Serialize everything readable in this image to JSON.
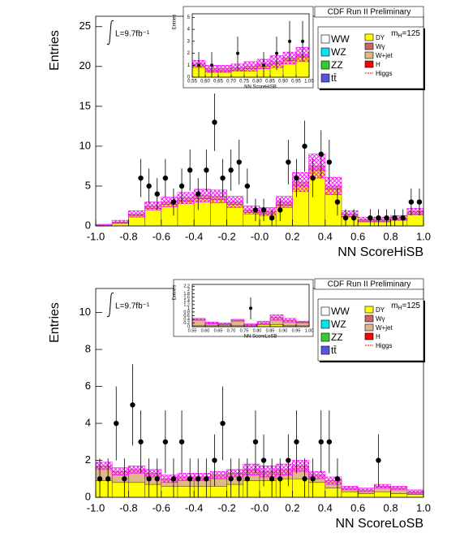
{
  "chart_data": [
    {
      "type": "histogram",
      "title": "CDF Run II Preliminary",
      "lumi": "L=9.7fb⁻¹",
      "mass": {
        "m": "m",
        "sub": "H",
        "rest": "=125"
      },
      "xlabel": "NN ScoreHiSB",
      "ylabel": "Entries",
      "bins": [
        -1.0,
        -0.9,
        -0.8,
        -0.7,
        -0.6,
        -0.5,
        -0.4,
        -0.3,
        -0.2,
        -0.1,
        0.0,
        0.1,
        0.2,
        0.3,
        0.4,
        0.5,
        0.6,
        0.7,
        0.8,
        0.9,
        1.0
      ],
      "series": [
        {
          "name": "DY",
          "color": "#ffff00",
          "values": [
            0.1,
            0.4,
            1.3,
            2.2,
            2.7,
            3.1,
            3.4,
            3.3,
            2.7,
            1.7,
            1.5,
            2.6,
            5.0,
            7.0,
            4.6,
            1.2,
            0.6,
            0.6,
            0.8,
            1.5
          ]
        },
        {
          "name": "W+jet",
          "color": "#deb887",
          "values": [
            0,
            0.1,
            0.2,
            0.3,
            0.3,
            0.4,
            0.4,
            0.4,
            0.3,
            0.3,
            0.3,
            0.4,
            0.5,
            0.5,
            0.4,
            0.3,
            0.2,
            0.2,
            0.2,
            0.3
          ]
        }
      ],
      "band": [
        0.1,
        0.2,
        0.4,
        0.5,
        0.6,
        0.7,
        0.8,
        0.8,
        0.7,
        0.5,
        0.5,
        0.7,
        1.2,
        1.5,
        1.1,
        0.4,
        0.3,
        0.3,
        0.3,
        0.4
      ],
      "data": {
        "x": [
          -0.725,
          -0.675,
          -0.625,
          -0.575,
          -0.525,
          -0.475,
          -0.425,
          -0.375,
          -0.325,
          -0.275,
          -0.225,
          -0.175,
          -0.125,
          -0.075,
          -0.025,
          0.025,
          0.075,
          0.125,
          0.175,
          0.225,
          0.275,
          0.325,
          0.375,
          0.425,
          0.475,
          0.525,
          0.575,
          0.675,
          0.725,
          0.775,
          0.825,
          0.875,
          0.925,
          0.975
        ],
        "values": [
          6,
          5,
          4,
          6,
          3,
          5,
          7,
          4,
          7,
          13,
          6,
          7,
          8,
          5,
          2,
          2,
          1,
          2,
          8,
          6,
          10,
          6,
          9,
          8,
          3,
          1,
          1,
          1,
          1,
          1,
          1,
          1,
          3,
          3
        ],
        "errors": [
          2.4,
          2.2,
          2,
          2.4,
          1.7,
          2.2,
          2.6,
          2,
          2.6,
          3.6,
          2.4,
          2.6,
          2.8,
          2.2,
          1.4,
          1.4,
          1.1,
          1.4,
          2.8,
          2.4,
          3.2,
          2.4,
          3,
          2.8,
          1.7,
          1.1,
          1.1,
          1.1,
          1.1,
          1.1,
          1.1,
          1.1,
          1.7,
          1.7
        ]
      },
      "xlim": [
        -1.0,
        1.0
      ],
      "ylim": [
        0,
        26.3
      ],
      "xticks": [
        {
          "value": -1.0,
          "label": "-1.0"
        },
        -0.8,
        -0.6,
        -0.4,
        -0.2,
        {
          "value": 0,
          "label": "-0.0"
        },
        0.2,
        0.4,
        0.6,
        0.8,
        {
          "value": 1.0,
          "label": "1.0"
        }
      ],
      "yticks": [
        0,
        5,
        10,
        15,
        20,
        25
      ],
      "legend": [
        {
          "name": "WW",
          "color": "#ffffff"
        },
        {
          "name": "WZ",
          "color": "#00e5ee"
        },
        {
          "name": "ZZ",
          "color": "#33cc33"
        },
        {
          "name": "tt̄",
          "color": "#5555dd"
        },
        {
          "name": "DY",
          "color": "#ffff00"
        },
        {
          "name": "Wγ",
          "color": "#cc6666"
        },
        {
          "name": "W+jet",
          "color": "#deb887"
        },
        {
          "name": "H",
          "color": "#ff0000"
        },
        {
          "name": "Higgs",
          "color": "#ff0000"
        }
      ]
    },
    {
      "type": "histogram",
      "xlabel": "NN ScoreHiSB",
      "ylabel": "Entries",
      "bins": [
        0.55,
        0.6,
        0.65,
        0.7,
        0.75,
        0.8,
        0.85,
        0.9,
        0.95,
        1.0
      ],
      "series": [
        {
          "name": "DY",
          "color": "#ffff00",
          "values": [
            0.9,
            0.5,
            0.5,
            0.6,
            0.7,
            0.9,
            1.1,
            1.4,
            1.7
          ]
        },
        {
          "name": "W+jet",
          "color": "#deb887",
          "values": [
            0.2,
            0.2,
            0.2,
            0.2,
            0.2,
            0.2,
            0.2,
            0.2,
            0.2
          ]
        }
      ],
      "band": [
        0.3,
        0.3,
        0.3,
        0.3,
        0.4,
        0.4,
        0.5,
        0.5,
        0.6
      ],
      "data": {
        "x": [
          0.575,
          0.625,
          0.725,
          0.825,
          0.875,
          0.925,
          0.975
        ],
        "values": [
          1,
          1,
          2,
          1,
          2,
          3,
          3
        ],
        "errors": [
          1.1,
          1.1,
          1.4,
          1.1,
          1.4,
          1.7,
          1.7
        ]
      },
      "xlim": [
        0.55,
        1.0
      ],
      "ylim": [
        0,
        5.3
      ],
      "xticks": [
        0.55,
        {
          "value": 0.6,
          "label": "0.60"
        },
        0.65,
        {
          "value": 0.7,
          "label": "0.70"
        },
        0.75,
        {
          "value": 0.8,
          "label": "0.80"
        },
        0.85,
        {
          "value": 0.9,
          "label": "0.90"
        },
        0.95,
        {
          "value": 1.0,
          "label": "1.00"
        }
      ],
      "yticks": [
        0,
        1,
        2,
        3,
        4,
        5
      ]
    },
    {
      "type": "histogram",
      "title": "CDF Run II Preliminary",
      "lumi": "L=9.7fb⁻¹",
      "mass": {
        "m": "m",
        "sub": "H",
        "rest": "=125"
      },
      "xlabel": "NN ScoreLoSB",
      "ylabel": "Entries",
      "bins": [
        -1.0,
        -0.9,
        -0.8,
        -0.7,
        -0.6,
        -0.5,
        -0.4,
        -0.3,
        -0.2,
        -0.1,
        0.0,
        0.1,
        0.2,
        0.3,
        0.4,
        0.5,
        0.6,
        0.7,
        0.8,
        0.9,
        1.0
      ],
      "series": [
        {
          "name": "DY",
          "color": "#ffff00",
          "values": [
            0.9,
            0.8,
            0.8,
            0.7,
            0.6,
            0.6,
            0.6,
            0.6,
            0.7,
            0.9,
            0.9,
            1.0,
            1.0,
            0.8,
            0.5,
            0.3,
            0.2,
            0.3,
            0.2,
            0.15
          ]
        },
        {
          "name": "W+jet",
          "color": "#deb887",
          "values": [
            0.8,
            0.6,
            0.7,
            0.6,
            0.4,
            0.5,
            0.5,
            0.6,
            0.6,
            0.6,
            0.5,
            0.5,
            0.7,
            0.4,
            0.4,
            0.2,
            0.2,
            0.3,
            0.3,
            0.15
          ]
        },
        "band_placeholder"
      ],
      "band": [
        0.2,
        0.2,
        0.2,
        0.2,
        0.2,
        0.2,
        0.2,
        0.2,
        0.2,
        0.3,
        0.3,
        0.3,
        0.3,
        0.2,
        0.2,
        0.1,
        0.1,
        0.1,
        0.1,
        0.1
      ],
      "data": {
        "x": [
          -0.975,
          -0.925,
          -0.875,
          -0.825,
          -0.775,
          -0.725,
          -0.675,
          -0.625,
          -0.575,
          -0.525,
          -0.475,
          -0.425,
          -0.375,
          -0.325,
          -0.275,
          -0.225,
          -0.175,
          -0.125,
          -0.075,
          -0.025,
          0.025,
          0.075,
          0.125,
          0.175,
          0.225,
          0.275,
          0.325,
          0.375,
          0.425,
          0.475,
          0.725
        ],
        "values": [
          1,
          1,
          4,
          1,
          5,
          3,
          1,
          1,
          3,
          1,
          3,
          1,
          1,
          1,
          2,
          4,
          1,
          1,
          1,
          3,
          2,
          1,
          1,
          2,
          3,
          1,
          1,
          3,
          3,
          1,
          2
        ],
        "errors": [
          1.1,
          1.1,
          2,
          1.1,
          2.2,
          1.7,
          1.1,
          1.1,
          1.7,
          1.1,
          1.7,
          1.1,
          1.1,
          1.1,
          1.4,
          2,
          1.1,
          1.1,
          1.1,
          1.7,
          1.4,
          1.1,
          1.1,
          1.4,
          1.7,
          1.1,
          1.1,
          1.7,
          1.7,
          1.1,
          1.4
        ]
      },
      "xlim": [
        -1.0,
        1.0
      ],
      "ylim": [
        0,
        11.3
      ],
      "xticks": [
        {
          "value": -1.0,
          "label": "-1.0"
        },
        -0.8,
        -0.6,
        -0.4,
        -0.2,
        {
          "value": 0,
          "label": "-0.0"
        },
        0.2,
        0.4,
        0.6,
        0.8,
        {
          "value": 1.0,
          "label": "1.0"
        }
      ],
      "yticks": [
        0,
        2,
        4,
        6,
        8,
        10
      ],
      "legend": [
        {
          "name": "WW",
          "color": "#ffffff"
        },
        {
          "name": "WZ",
          "color": "#00e5ee"
        },
        {
          "name": "ZZ",
          "color": "#33cc33"
        },
        {
          "name": "tt̄",
          "color": "#5555dd"
        },
        {
          "name": "DY",
          "color": "#ffff00"
        },
        {
          "name": "Wγ",
          "color": "#cc6666"
        },
        {
          "name": "W+jet",
          "color": "#deb887"
        },
        {
          "name": "H",
          "color": "#ff0000"
        },
        {
          "name": "Higgs",
          "color": "#ff0000"
        }
      ]
    },
    {
      "type": "histogram",
      "xlabel": "NN ScoreLoSB",
      "ylabel": "Entries",
      "bins": [
        0.55,
        0.6,
        0.65,
        0.7,
        0.75,
        0.8,
        0.85,
        0.9,
        0.95,
        1.0
      ],
      "series": [
        {
          "name": "DY",
          "color": "#ffff00",
          "values": [
            0.05,
            0.05,
            0.05,
            0.05,
            0.05,
            0.1,
            0.1,
            0.05,
            0.05
          ]
        },
        {
          "name": "W+jet",
          "color": "#deb887",
          "values": [
            0.35,
            0.15,
            0.1,
            0.3,
            0.05,
            0.1,
            0.4,
            0.3,
            0.2
          ]
        }
      ],
      "band": [
        0.05,
        0.05,
        0.05,
        0.05,
        0.05,
        0.1,
        0.15,
        0.1,
        0.05
      ],
      "data": {
        "x": [
          0.775
        ],
        "values": [
          1
        ],
        "errors": [
          0.6
        ]
      },
      "xlim": [
        0.55,
        1.0
      ],
      "ylim": [
        0,
        2.3
      ],
      "xticks": [
        0.55,
        {
          "value": 0.6,
          "label": "0.60"
        },
        0.65,
        {
          "value": 0.7,
          "label": "0.70"
        },
        0.75,
        {
          "value": 0.8,
          "label": "0.80"
        },
        0.85,
        {
          "value": 0.9,
          "label": "0.90"
        },
        0.95,
        {
          "value": 1.0,
          "label": "1.00"
        }
      ],
      "yticks": [
        0,
        0.2,
        0.4,
        0.6,
        0.8,
        1,
        1.2,
        1.4,
        1.6,
        1.8,
        2,
        2.2
      ]
    }
  ]
}
